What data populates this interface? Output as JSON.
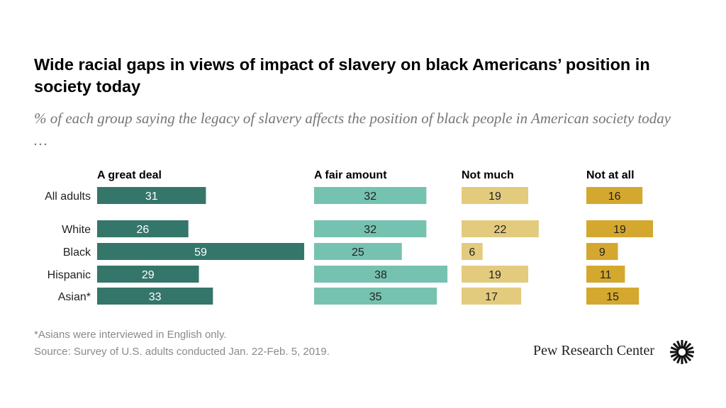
{
  "title": "Wide racial gaps in views of impact of slavery on black Americans’ position in society today",
  "subtitle": "% of each group saying the legacy of slavery affects the position of black people in American society today …",
  "chart_data": {
    "type": "bar",
    "stacking": "grouped-columns",
    "categories": [
      "All adults",
      "White",
      "Black",
      "Hispanic",
      "Asian*"
    ],
    "series": [
      {
        "name": "A great deal",
        "values": [
          31,
          26,
          59,
          29,
          33
        ],
        "color": "#35766A"
      },
      {
        "name": "A fair amount",
        "values": [
          32,
          32,
          25,
          38,
          35
        ],
        "color": "#76C2B0"
      },
      {
        "name": "Not much",
        "values": [
          19,
          22,
          6,
          19,
          17
        ],
        "color": "#E3CB7E"
      },
      {
        "name": "Not at all",
        "values": [
          16,
          19,
          9,
          11,
          15
        ],
        "color": "#D4A82E"
      }
    ]
  },
  "footnote": "*Asians were interviewed in English only.",
  "source": "Source: Survey of U.S. adults conducted Jan. 22-Feb. 5, 2019.",
  "logo": "Pew Research Center"
}
